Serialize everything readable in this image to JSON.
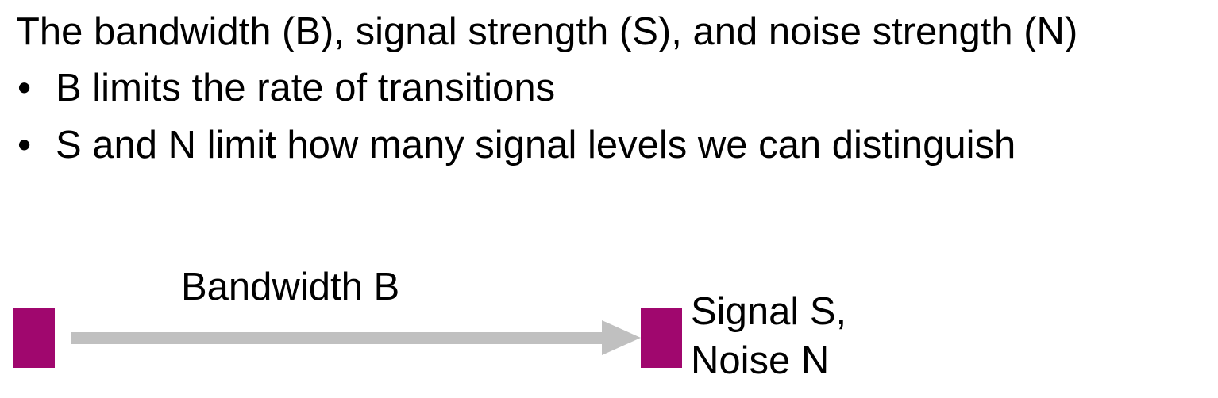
{
  "heading": "The bandwidth (B), signal strength (S), and noise strength (N)",
  "bullet_marker": "•",
  "bullets": [
    "B limits the rate of transitions",
    "S and N limit how many signal levels we can distinguish"
  ],
  "diagram": {
    "link_label": "Bandwidth B",
    "receiver_label_line1": "Signal S,",
    "receiver_label_line2": "Noise N",
    "colors": {
      "node": "#a0076e",
      "arrow": "#c0c0c0"
    }
  }
}
